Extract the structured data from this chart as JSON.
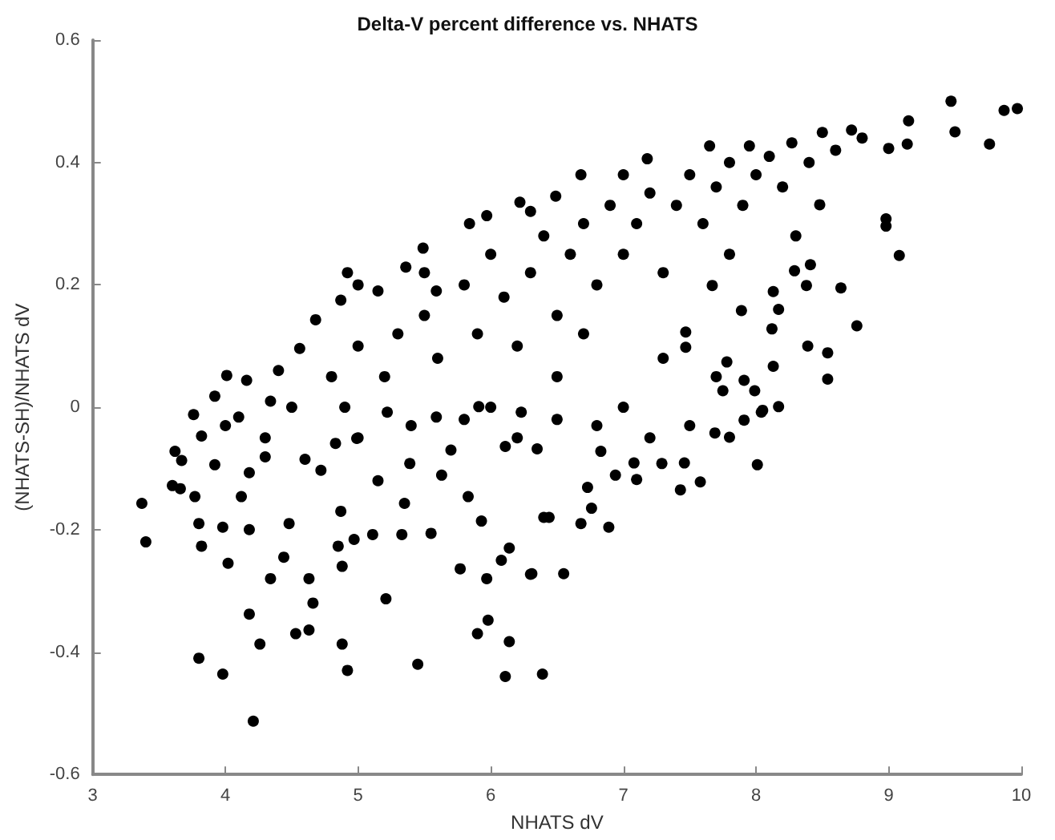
{
  "chart_data": {
    "type": "scatter",
    "title": "Delta-V percent difference vs. NHATS",
    "xlabel": "NHATS dV",
    "ylabel": "(NHATS-SH)/NHATS dV",
    "xlim": [
      3,
      10
    ],
    "xticks": [
      3,
      4,
      5,
      6,
      7,
      8,
      9,
      10
    ],
    "ylim": [
      -0.6,
      0.6
    ],
    "yticks": [
      -0.6,
      -0.4,
      -0.2,
      0,
      0.2,
      0.4,
      0.6
    ],
    "grid": false,
    "marker": "circle",
    "series": [
      {
        "color": "#000000",
        "x": [
          3.37,
          3.4,
          3.8,
          3.98,
          4.21,
          4.18,
          4.26,
          4.53,
          4.63,
          4.66,
          4.88,
          4.92,
          5.45,
          5.21,
          6.11,
          6.39,
          5.9,
          5.98,
          6.14,
          5.97,
          5.77,
          6.3,
          6.08,
          6.14,
          4.02,
          4.34,
          4.44,
          4.63,
          4.88,
          4.85,
          4.97,
          5.11,
          5.33,
          5.55,
          3.82,
          3.8,
          3.98,
          4.18,
          4.48,
          4.87,
          5.35,
          5.93,
          6.4,
          6.55,
          6.31,
          6.44,
          6.68,
          6.89,
          6.76,
          6.73,
          6.94,
          7.1,
          7.43,
          7.58,
          8.01,
          7.08,
          7.29,
          7.46,
          6.83,
          7.69,
          7.8,
          7.91,
          8.04,
          8.17,
          9.47,
          9.5,
          9.76,
          9.87,
          9.97,
          9.15,
          9.14,
          9.0,
          8.98,
          8.98,
          9.08,
          8.76,
          8.64,
          8.54,
          8.54,
          8.39,
          8.13,
          8.12,
          8.17,
          8.13,
          8.29,
          8.41,
          8.38,
          8.48,
          8.05,
          7.78,
          7.91,
          7.99,
          7.75,
          7.89,
          7.67,
          7.47,
          7.47,
          8.5,
          8.72,
          8.27,
          7.95,
          7.65,
          7.18,
          6.68,
          6.49,
          7.0,
          6.22,
          5.97,
          5.84,
          5.49,
          5.36,
          4.92,
          4.87,
          4.68,
          4.56,
          4.01,
          4.16,
          3.92,
          3.76,
          3.62,
          3.67,
          3.6,
          3.66,
          3.77,
          3.92,
          3.82,
          4.12,
          4.18,
          4.3,
          4.34,
          4.1,
          4.6,
          4.72,
          4.83,
          4.99,
          5.15,
          5.39,
          5.63,
          5.83,
          6.11,
          6.35,
          5.22,
          5.59,
          5.91,
          6.23,
          5.15,
          5.59,
          5.0,
          5.2,
          5.3,
          5.5,
          5.6,
          5.8,
          5.9,
          6.0,
          6.1,
          6.2,
          6.3,
          6.4,
          6.5,
          6.6,
          6.7,
          6.8,
          6.9,
          7.0,
          7.1,
          7.2,
          7.3,
          7.4,
          7.5,
          7.6,
          7.7,
          7.8,
          7.9,
          8.0,
          8.1,
          8.2,
          8.4,
          8.6,
          8.8,
          6.0,
          6.2,
          6.5,
          6.8,
          7.0,
          7.2,
          7.5,
          7.7,
          5.0,
          5.4,
          5.7,
          4.5,
          4.8,
          4.3,
          4.0,
          5.0,
          5.5,
          6.5,
          7.3,
          6.7,
          7.8,
          8.3,
          4.4,
          4.9,
          6.3,
          5.8
        ],
        "values": [
          -0.157,
          -0.22,
          -0.41,
          -0.436,
          -0.513,
          -0.338,
          -0.387,
          -0.37,
          -0.364,
          -0.32,
          -0.387,
          -0.43,
          -0.42,
          -0.313,
          -0.44,
          -0.436,
          -0.37,
          -0.348,
          -0.383,
          -0.28,
          -0.264,
          -0.273,
          -0.25,
          -0.23,
          -0.255,
          -0.28,
          -0.245,
          -0.28,
          -0.26,
          -0.227,
          -0.216,
          -0.208,
          -0.208,
          -0.206,
          -0.227,
          -0.19,
          -0.196,
          -0.2,
          -0.19,
          -0.17,
          -0.157,
          -0.186,
          -0.18,
          -0.272,
          -0.272,
          -0.18,
          -0.19,
          -0.196,
          -0.165,
          -0.131,
          -0.111,
          -0.118,
          -0.135,
          -0.122,
          -0.094,
          -0.091,
          -0.092,
          -0.091,
          -0.072,
          -0.042,
          -0.049,
          -0.021,
          -0.008,
          0.001,
          0.5,
          0.45,
          0.43,
          0.485,
          0.488,
          0.468,
          0.43,
          0.423,
          0.308,
          0.296,
          0.248,
          0.133,
          0.195,
          0.089,
          0.046,
          0.1,
          0.067,
          0.128,
          0.16,
          0.189,
          0.223,
          0.233,
          0.199,
          0.331,
          -0.005,
          0.074,
          0.044,
          0.027,
          0.027,
          0.158,
          0.199,
          0.123,
          0.098,
          0.449,
          0.453,
          0.432,
          0.427,
          0.427,
          0.406,
          0.38,
          0.345,
          0.38,
          0.335,
          0.313,
          0.3,
          0.26,
          0.229,
          0.22,
          0.175,
          0.143,
          0.096,
          0.052,
          0.044,
          0.018,
          -0.012,
          -0.072,
          -0.087,
          -0.128,
          -0.133,
          -0.146,
          -0.094,
          -0.047,
          -0.146,
          -0.107,
          -0.081,
          0.01,
          -0.016,
          -0.085,
          -0.103,
          -0.059,
          -0.051,
          -0.12,
          -0.092,
          -0.111,
          -0.146,
          -0.064,
          -0.068,
          -0.008,
          -0.016,
          0.001,
          -0.008,
          0.19,
          0.19,
          0.1,
          0.05,
          0.12,
          0.15,
          0.08,
          0.2,
          0.12,
          0.25,
          0.18,
          0.1,
          0.22,
          0.28,
          0.15,
          0.25,
          0.3,
          0.2,
          0.33,
          0.25,
          0.3,
          0.35,
          0.22,
          0.33,
          0.38,
          0.3,
          0.36,
          0.4,
          0.33,
          0.38,
          0.41,
          0.36,
          0.4,
          0.42,
          0.44,
          0.0,
          -0.05,
          -0.02,
          -0.03,
          0.0,
          -0.05,
          -0.03,
          0.05,
          -0.05,
          -0.03,
          -0.07,
          0.0,
          0.05,
          -0.05,
          -0.03,
          0.2,
          0.22,
          0.05,
          0.08,
          0.12,
          0.25,
          0.28,
          0.06,
          0.0,
          0.32,
          -0.02
        ]
      }
    ]
  }
}
